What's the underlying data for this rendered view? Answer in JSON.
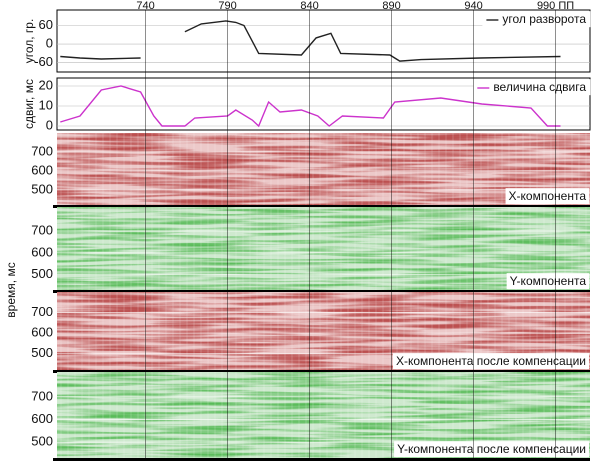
{
  "shared_ylabel": "время, мс",
  "chart_data": [
    {
      "type": "line",
      "ylabel": "угол, гр.",
      "xlim": [
        686,
        1011
      ],
      "xticks": [
        740,
        790,
        840,
        890,
        940,
        {
          "value": 990,
          "label": "990 ПП"
        }
      ],
      "ylim": [
        -90,
        110
      ],
      "yticks": [
        60,
        0,
        -60
      ],
      "x": [
        688,
        700,
        713,
        737,
        750,
        764,
        774,
        789,
        795,
        800,
        809,
        835,
        844,
        853,
        859,
        889,
        895,
        908,
        944,
        993
      ],
      "series": [
        {
          "name": "угол разворота",
          "color": "#222222",
          "values": [
            -40,
            -45,
            -48,
            -45,
            null,
            40,
            65,
            75,
            70,
            60,
            -30,
            -35,
            20,
            35,
            -30,
            -35,
            -55,
            -50,
            -45,
            -40
          ]
        }
      ]
    },
    {
      "type": "line",
      "ylabel": "сдвиг, мс",
      "xlim": [
        686,
        1011
      ],
      "ylim": [
        -2,
        24
      ],
      "yticks": [
        20,
        10,
        0
      ],
      "x": [
        688,
        700,
        713,
        725,
        737,
        745,
        750,
        764,
        770,
        790,
        795,
        805,
        809,
        815,
        822,
        835,
        845,
        852,
        860,
        885,
        892,
        920,
        945,
        975,
        985,
        993
      ],
      "series": [
        {
          "name": "величина сдвига",
          "color": "#cc33cc",
          "values": [
            2,
            5,
            18,
            20,
            17,
            5,
            0,
            0,
            4,
            5,
            8,
            3,
            0,
            12,
            7,
            8,
            5,
            0,
            5,
            4,
            12,
            14,
            11,
            9,
            0,
            0
          ]
        }
      ]
    },
    {
      "type": "seismic",
      "title": "X-компонента",
      "ylim": [
        420,
        800
      ],
      "yticks": [
        500,
        600,
        700
      ],
      "color": "#8b1c1c",
      "background": "#ecc9c9"
    },
    {
      "type": "seismic",
      "title": "Y-компонента",
      "ylim": [
        430,
        810
      ],
      "yticks": [
        500,
        600,
        700
      ],
      "color": "#2e8b2e",
      "background": "#cfe9cf"
    },
    {
      "type": "seismic",
      "title": "X-компонента после компенсации",
      "ylim": [
        420,
        800
      ],
      "yticks": [
        500,
        600,
        700
      ],
      "color": "#8b1c1c",
      "background": "#ecc9c9"
    },
    {
      "type": "seismic",
      "title": "Y-компонента после компенсации",
      "ylim": [
        430,
        810
      ],
      "yticks": [
        500,
        600,
        700
      ],
      "color": "#2e8b2e",
      "background": "#cfe9cf"
    }
  ]
}
